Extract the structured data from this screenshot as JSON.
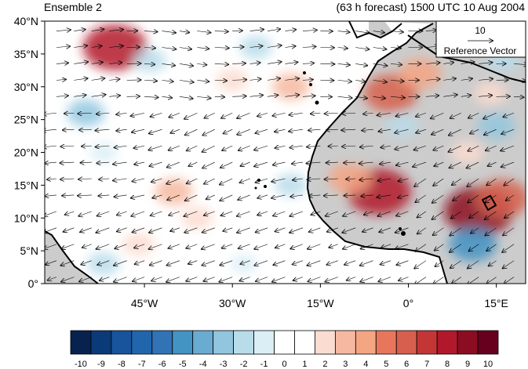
{
  "title_left": "Ensemble 2",
  "title_right": "(63 h forecast) 1500 UTC 10 Aug 2004",
  "map": {
    "lon_range": [
      -62,
      20
    ],
    "lat_range": [
      0,
      40
    ],
    "lat_ticks": [
      {
        "value": 40,
        "label": "40°N"
      },
      {
        "value": 35,
        "label": "35°N"
      },
      {
        "value": 30,
        "label": "30°N"
      },
      {
        "value": 25,
        "label": "25°N"
      },
      {
        "value": 20,
        "label": "20°N"
      },
      {
        "value": 15,
        "label": "15°N"
      },
      {
        "value": 10,
        "label": "10°N"
      },
      {
        "value": 5,
        "label": "5°N"
      },
      {
        "value": 0,
        "label": "0°"
      }
    ],
    "lon_ticks": [
      {
        "value": -45,
        "label": "45°W"
      },
      {
        "value": -30,
        "label": "30°W"
      },
      {
        "value": -15,
        "label": "15°W"
      },
      {
        "value": 0,
        "label": "0°"
      },
      {
        "value": 15,
        "label": "15°E"
      }
    ],
    "land_color": "#cccccc",
    "ocean_color": "#ffffff"
  },
  "reference_vector": {
    "value": "10",
    "label": "Reference Vector"
  },
  "colorbar": {
    "labels": [
      "-10",
      "-9",
      "-8",
      "-7",
      "-6",
      "-5",
      "-4",
      "-3",
      "-2",
      "-1",
      "0",
      "1",
      "2",
      "3",
      "4",
      "5",
      "6",
      "7",
      "8",
      "9",
      "10"
    ],
    "colors": [
      "#08224f",
      "#0b3a78",
      "#17549c",
      "#2166ac",
      "#3273b5",
      "#4393c3",
      "#6aabd2",
      "#92c5de",
      "#b8dcea",
      "#dbeef6",
      "#ffffff",
      "#ffffff",
      "#fbdcd0",
      "#f6b8a0",
      "#f4a582",
      "#e7765c",
      "#d6604d",
      "#c43636",
      "#b2182b",
      "#8c0d22",
      "#67001f"
    ]
  },
  "anomalies": [
    {
      "lon": -50,
      "lat": 36,
      "value": 8
    },
    {
      "lon": -44,
      "lat": 34,
      "value": -2
    },
    {
      "lon": -55,
      "lat": 26,
      "value": -3
    },
    {
      "lon": -52,
      "lat": 20,
      "value": -1
    },
    {
      "lon": -40,
      "lat": 14,
      "value": 3
    },
    {
      "lon": -36,
      "lat": 10,
      "value": 2
    },
    {
      "lon": -30,
      "lat": 31,
      "value": 2
    },
    {
      "lon": -20,
      "lat": 30,
      "value": 3
    },
    {
      "lon": -26,
      "lat": 36,
      "value": -2
    },
    {
      "lon": -20,
      "lat": 15,
      "value": -2
    },
    {
      "lon": -28,
      "lat": 3,
      "value": -1
    },
    {
      "lon": -5,
      "lat": 14,
      "value": 8
    },
    {
      "lon": -10,
      "lat": 16,
      "value": 4
    },
    {
      "lon": -3,
      "lat": 29,
      "value": 6
    },
    {
      "lon": 2,
      "lat": 32,
      "value": 4
    },
    {
      "lon": -1,
      "lat": 24,
      "value": -2
    },
    {
      "lon": 10,
      "lat": 20,
      "value": 2
    },
    {
      "lon": 12,
      "lat": 11,
      "value": 9
    },
    {
      "lon": 16,
      "lat": 13,
      "value": 6
    },
    {
      "lon": 11,
      "lat": 6,
      "value": -5
    },
    {
      "lon": 15,
      "lat": 24,
      "value": -3
    },
    {
      "lon": 16,
      "lat": 34,
      "value": -2
    },
    {
      "lon": 14,
      "lat": 29,
      "value": 2
    },
    {
      "lon": -52,
      "lat": 3,
      "value": -2
    },
    {
      "lon": -46,
      "lat": 6,
      "value": 2
    }
  ]
}
